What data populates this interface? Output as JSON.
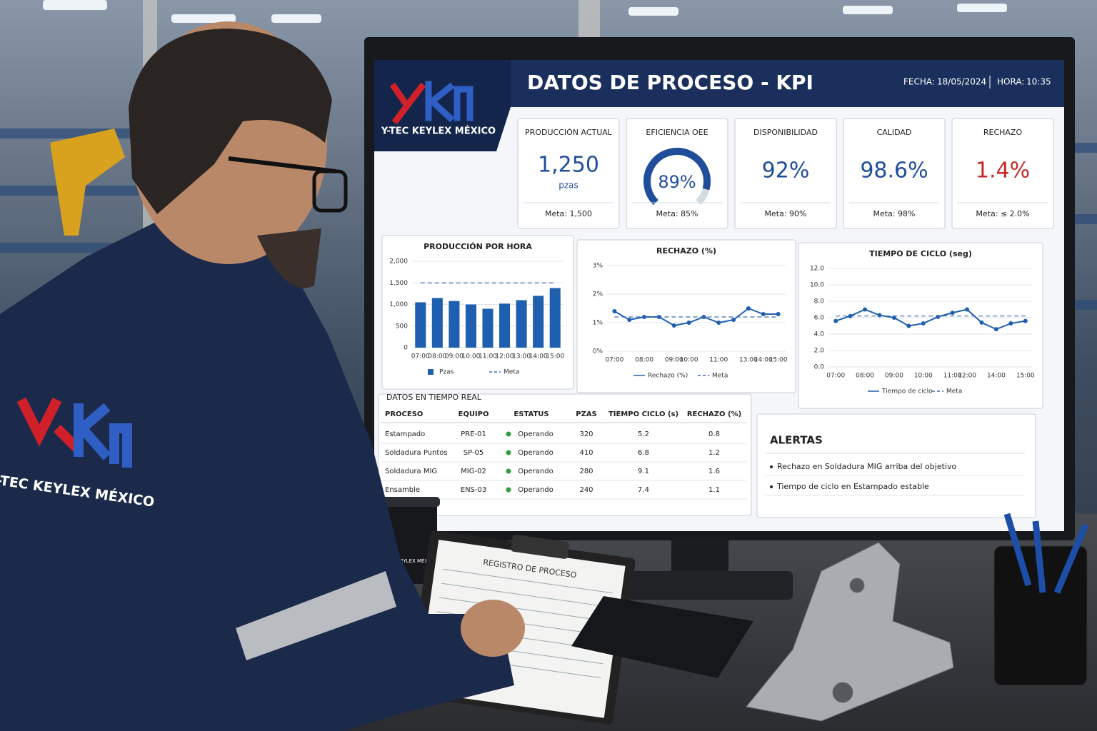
{
  "header": {
    "title": "DATOS DE PROCESO - KPI",
    "date_label": "FECHA:",
    "date": "18/05/2024",
    "time_label": "HORA:",
    "time": "10:35",
    "company": "Y-TEC KEYLEX MÉXICO"
  },
  "kpis": [
    {
      "label": "PRODUCCIÓN ACTUAL",
      "value": "1,250",
      "unit": "pzas",
      "target": "Meta: 1,500",
      "color": "#1f4e9a"
    },
    {
      "label": "EFICIENCIA OEE",
      "value": 89,
      "value_label": "89%",
      "range": [
        0,
        100
      ],
      "target": "Meta: 85%",
      "color": "#1f4e9a"
    },
    {
      "label": "DISPONIBILIDAD",
      "value": "92%",
      "target": "Meta: 90%",
      "color": "#1f4e9a"
    },
    {
      "label": "CALIDAD",
      "value": "98.6%",
      "target": "Meta: 98%",
      "color": "#1f4e9a"
    },
    {
      "label": "RECHAZO",
      "value": "1.4%",
      "target": "Meta: ≤ 2.0%",
      "color": "#c62828"
    }
  ],
  "charts": [
    {
      "type": "bar",
      "title": "PRODUCCIÓN POR HORA",
      "categories": [
        "07:00",
        "08:00",
        "09:00",
        "10:00",
        "11:00",
        "12:00",
        "13:00",
        "14:00",
        "15:00"
      ],
      "series": [
        {
          "name": "Pzas",
          "color": "#1f5fb0",
          "mark": "bar",
          "values": [
            1050,
            1150,
            1080,
            1000,
            900,
            1020,
            1100,
            1200,
            1380
          ]
        },
        {
          "name": "Meta",
          "color": "#3a6db5",
          "mark": "line",
          "dashed": true,
          "values": [
            1500,
            1500,
            1500,
            1500,
            1500,
            1500,
            1500,
            1500,
            1500
          ]
        }
      ],
      "ylim": [
        0,
        2000
      ],
      "yticks": [
        0,
        500,
        {
          "value": 1000,
          "label": "1,000"
        },
        {
          "value": 1500,
          "label": "1,500"
        },
        {
          "value": 2000,
          "label": "2,000"
        }
      ],
      "grid": true
    },
    {
      "type": "line",
      "title": "RECHAZO (%)",
      "categories": [
        "07:00",
        null,
        "08:00",
        null,
        "09:00",
        "10:00",
        null,
        "11:00",
        null,
        "13:00",
        "14:00",
        "15:00"
      ],
      "series": [
        {
          "name": "Rechazo (%)",
          "color": "#1f5fb0",
          "mark": "line",
          "markers": true,
          "values": [
            1.4,
            1.1,
            1.2,
            1.2,
            0.9,
            1.0,
            1.2,
            1.0,
            1.1,
            1.5,
            1.3,
            1.3
          ]
        },
        {
          "name": "Meta",
          "color": "#3a6db5",
          "mark": "line",
          "dashed": true,
          "values": [
            1.2,
            1.2,
            1.2,
            1.2,
            1.2,
            1.2,
            1.2,
            1.2,
            1.2,
            1.2,
            1.2,
            1.2
          ]
        }
      ],
      "ylim": [
        0,
        3
      ],
      "yticks": [
        {
          "value": 0,
          "label": "0%"
        },
        {
          "value": 1,
          "label": "1%"
        },
        {
          "value": 2,
          "label": "2%"
        },
        {
          "value": 3,
          "label": "3%"
        }
      ],
      "grid": true
    },
    {
      "type": "line",
      "title": "TIEMPO DE CICLO (seg)",
      "categories": [
        "07:00",
        null,
        "08:00",
        null,
        "09:00",
        null,
        "10:00",
        null,
        "11:00",
        "12:00",
        null,
        "14:00",
        null,
        "15:00"
      ],
      "series": [
        {
          "name": "Tiempo de ciclo",
          "color": "#1f5fb0",
          "mark": "line",
          "markers": true,
          "values": [
            5.6,
            6.2,
            7.0,
            6.3,
            6.0,
            5.0,
            5.3,
            6.1,
            6.6,
            7.0,
            5.4,
            4.6,
            5.3,
            5.6
          ]
        },
        {
          "name": "Meta",
          "color": "#3a6db5",
          "mark": "line",
          "dashed": true,
          "values": [
            6.2,
            6.2,
            6.2,
            6.2,
            6.2,
            6.2,
            6.2,
            6.2,
            6.2,
            6.2,
            6.2,
            6.2,
            6.2,
            6.2
          ]
        }
      ],
      "ylim": [
        0,
        12
      ],
      "yticks": [
        {
          "value": 0,
          "label": "0.0"
        },
        {
          "value": 2,
          "label": "2.0"
        },
        {
          "value": 4,
          "label": "4.0"
        },
        {
          "value": 6,
          "label": "6.0"
        },
        {
          "value": 8,
          "label": "8.0"
        },
        {
          "value": 10,
          "label": "10.0"
        },
        {
          "value": 12,
          "label": "12.0"
        }
      ],
      "grid": true
    }
  ],
  "table": {
    "title": "DATOS EN TIEMPO REAL",
    "headers": [
      "PROCESO",
      "EQUIPO",
      "ESTATUS",
      "PZAS",
      "TIEMPO CICLO (s)",
      "RECHAZO (%)"
    ],
    "rows": [
      [
        "Estampado",
        "PRE-01",
        "Operando",
        "320",
        "5.2",
        "0.8"
      ],
      [
        "Soldadura Puntos",
        "SP-05",
        "Operando",
        "410",
        "6.8",
        "1.2"
      ],
      [
        "Soldadura MIG",
        "MIG-02",
        "Operando",
        "280",
        "9.1",
        "1.6"
      ],
      [
        "Ensamble",
        "ENS-03",
        "Operando",
        "240",
        "7.4",
        "1.1"
      ]
    ]
  },
  "alerts": {
    "title": "ALERTAS",
    "items": [
      "Rechazo en Soldadura MIG arriba del objetivo",
      "Tiempo de ciclo en Estampado estable"
    ]
  },
  "scene": {
    "jacket_text": "Y-TEC KEYLEX MÉXICO",
    "mug_text": "Y-TEC KEYLEX MÉXICO",
    "clipboard_title": "REGISTRO DE PROCESO"
  }
}
